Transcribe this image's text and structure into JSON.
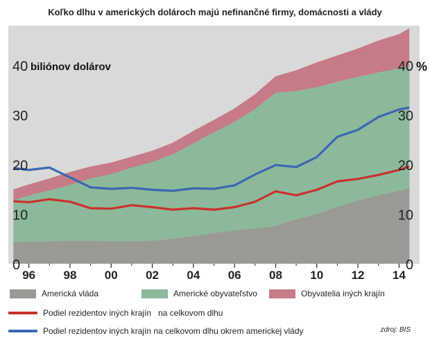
{
  "chart_data": {
    "type": "area",
    "title": "Koľko dlhu v amerických dolároch majú nefinančné firmy, domácnosti a vlády",
    "left_axis_unit": "biliónov dolárov",
    "right_axis_unit": "%",
    "left_axis": {
      "range": [
        0,
        48
      ],
      "ticks": [
        "0",
        "10",
        "20",
        "30",
        "40"
      ]
    },
    "right_axis": {
      "range": [
        0,
        48
      ],
      "ticks": [
        "0",
        "10",
        "20",
        "30",
        "40"
      ]
    },
    "x_ticks": [
      "96",
      "98",
      "00",
      "02",
      "04",
      "06",
      "08",
      "10",
      "12",
      "14"
    ],
    "x_tick_years": [
      1996,
      1998,
      2000,
      2002,
      2004,
      2006,
      2008,
      2010,
      2012,
      2014
    ],
    "x_range": [
      1995,
      2015
    ],
    "grid": false,
    "colors": {
      "background": "#d9d9d9",
      "government": "#9a9a95",
      "households": "#8db99b",
      "foreign": "#c77b86",
      "foreign_share": "#c8322d",
      "foreign_share_ex_gov": "#3a68b3"
    },
    "x": [
      1995.25,
      1996,
      1997,
      1998,
      1999,
      2000,
      2001,
      2002,
      2003,
      2004,
      2005,
      2006,
      2007,
      2008,
      2009,
      2010,
      2011,
      2012,
      2013,
      2014,
      2014.5
    ],
    "stacked_series": [
      {
        "name": "Americká vláda",
        "key": "government",
        "values": [
          4.3,
          4.4,
          4.5,
          4.6,
          4.6,
          4.5,
          4.5,
          4.6,
          5.0,
          5.6,
          6.2,
          6.7,
          7.1,
          7.6,
          9.0,
          10.0,
          11.5,
          12.7,
          13.8,
          14.7,
          15.2
        ]
      },
      {
        "name": "Americké obyvateľstvo",
        "key": "households",
        "values": [
          12.8,
          13.8,
          14.8,
          15.9,
          17.2,
          18.1,
          19.4,
          20.5,
          22.1,
          24.3,
          26.5,
          28.6,
          31.2,
          34.5,
          34.8,
          35.6,
          36.7,
          37.7,
          38.6,
          39.4,
          40.0
        ]
      },
      {
        "name": "Obyvatelia iných krajín",
        "key": "foreign",
        "values": [
          15.0,
          16.0,
          17.2,
          18.5,
          19.6,
          20.4,
          21.6,
          22.8,
          24.4,
          26.8,
          29.0,
          31.3,
          34.2,
          37.8,
          39.0,
          40.6,
          42.0,
          43.4,
          45.0,
          46.3,
          47.5
        ]
      }
    ],
    "line_series": [
      {
        "name": "Podiel rezidentov iných krajín   na celkovom dlhu",
        "key": "foreign_share",
        "values": [
          12.6,
          12.4,
          13.0,
          12.5,
          11.2,
          11.1,
          11.8,
          11.4,
          10.9,
          11.2,
          10.9,
          11.4,
          12.5,
          14.6,
          13.8,
          14.9,
          16.6,
          17.1,
          17.9,
          18.9,
          19.6
        ]
      },
      {
        "name": "Podiel rezidentov iných krajín na celkovom dlhu okrem americkej vlády",
        "key": "foreign_share_ex_gov",
        "values": [
          19.3,
          18.9,
          19.4,
          17.4,
          15.4,
          15.1,
          15.3,
          14.9,
          14.7,
          15.2,
          15.1,
          15.8,
          18.0,
          19.9,
          19.5,
          21.5,
          25.6,
          27.0,
          29.6,
          31.1,
          31.5
        ]
      }
    ],
    "source": "zdroj: BIS"
  }
}
